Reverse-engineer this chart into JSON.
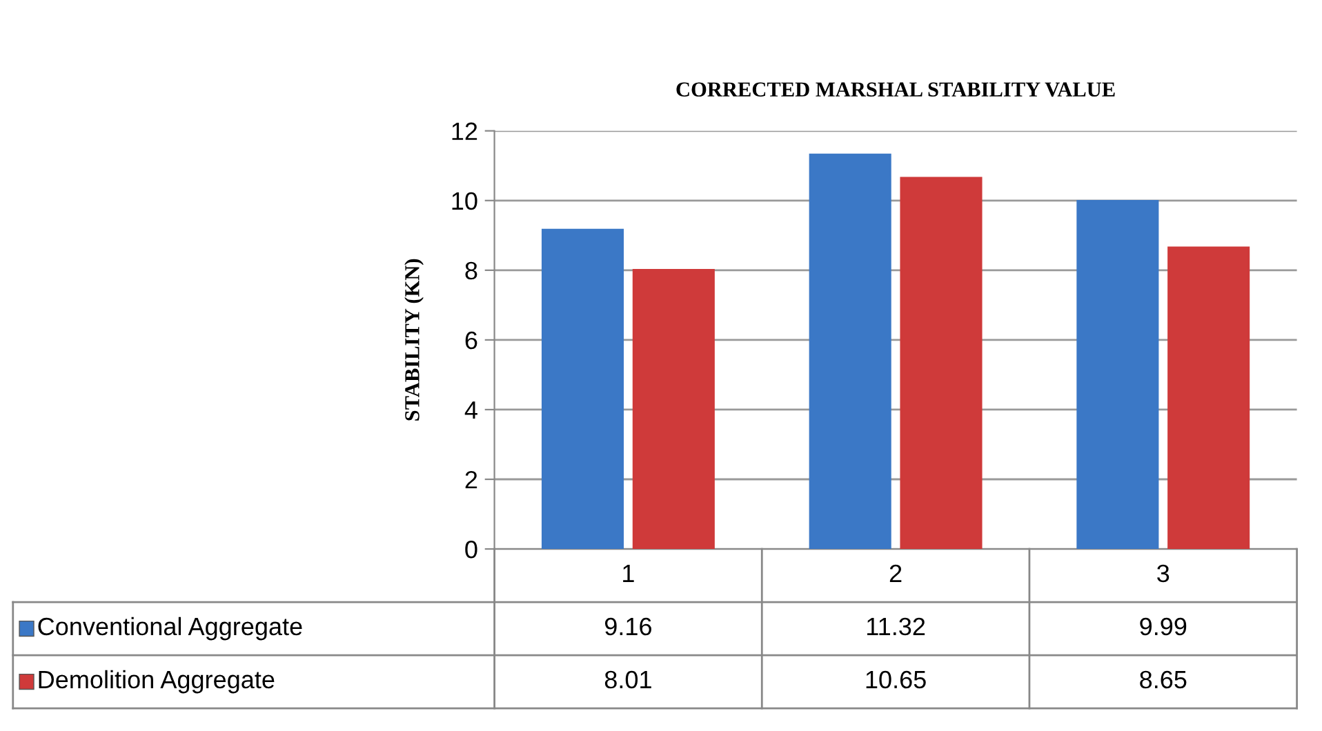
{
  "chart_data": {
    "type": "bar",
    "title": "CORRECTED MARSHAL STABILITY VALUE",
    "ylabel": "STABILITY (KN)",
    "categories": [
      "1",
      "2",
      "3"
    ],
    "series": [
      {
        "name": "Conventional Aggregate",
        "color": "#3b78c6",
        "values": [
          9.16,
          11.32,
          9.99
        ]
      },
      {
        "name": "Demolition Aggregate",
        "color": "#cf3a3a",
        "values": [
          8.01,
          10.65,
          8.65
        ]
      }
    ],
    "ylim": [
      0,
      12
    ],
    "yticks": [
      0,
      2,
      4,
      6,
      8,
      10,
      12
    ],
    "grid": "y",
    "legend": "bottom",
    "data_labels": true
  }
}
